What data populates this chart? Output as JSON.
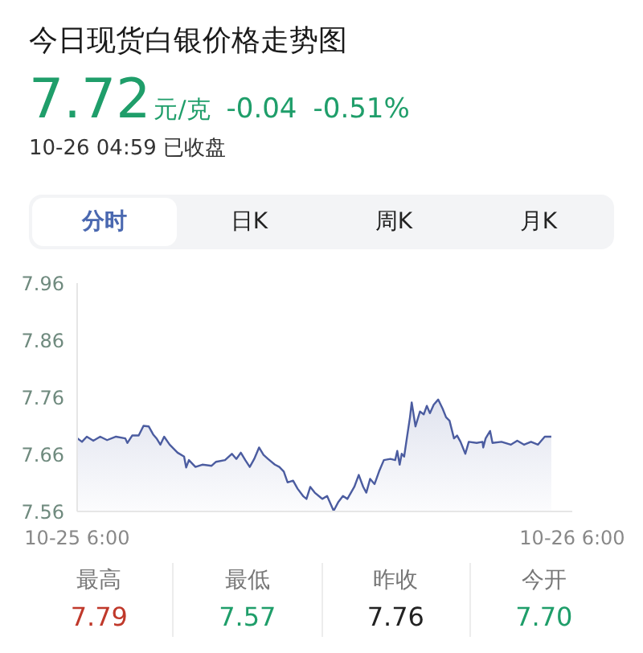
{
  "chart_data": {
    "type": "area",
    "title": "今日现货白银价格走势图",
    "annotations": [
      "7.72",
      "元/克",
      "-0.04",
      "-0.51%",
      "10-26 04:59 已收盘",
      "分时",
      "日K",
      "周K",
      "月K",
      "最高",
      "7.79",
      "最低",
      "7.57",
      "昨收",
      "7.76",
      "今开",
      "7.70"
    ],
    "color": "#4b5ca0",
    "x": [
      "--10-25T06:01",
      "--10-25T06:14",
      "--10-25T06:28",
      "--10-25T06:47",
      "--10-25T07:07",
      "--10-25T07:27",
      "--10-25T07:53",
      "--10-25T08:20",
      "--10-25T08:26",
      "--10-25T08:40",
      "--10-25T08:59",
      "--10-25T09:13",
      "--10-25T09:28",
      "--10-25T09:41",
      "--10-25T09:52",
      "--10-25T10:02",
      "--10-25T10:13",
      "--10-25T10:29",
      "--10-25T10:52",
      "--10-25T11:11",
      "--10-25T11:17",
      "--10-25T11:25",
      "--10-25T11:44",
      "--10-25T12:04",
      "--10-25T12:31",
      "--10-25T12:44",
      "--10-25T13:10",
      "--10-25T13:30",
      "--10-25T13:43",
      "--10-25T13:56",
      "--10-25T14:09",
      "--10-25T14:22",
      "--10-25T14:35",
      "--10-25T14:49",
      "--10-25T15:02",
      "--10-25T15:15",
      "--10-25T15:35",
      "--10-25T15:48",
      "--10-25T16:01",
      "--10-25T16:12",
      "--10-25T16:28",
      "--10-25T16:41",
      "--10-25T16:57",
      "--10-25T17:07",
      "--10-25T17:18",
      "--10-25T17:31",
      "--10-25T17:47",
      "--10-25T17:53",
      "--10-25T18:07",
      "--10-25T18:26",
      "--10-25T18:40",
      "--10-25T18:53",
      "--10-25T19:06",
      "--10-25T19:26",
      "--10-25T19:39",
      "--10-25T19:52",
      "--10-25T20:01",
      "--10-25T20:12",
      "--10-25T20:25",
      "--10-25T20:38",
      "--10-25T20:52",
      "--10-25T21:11",
      "--10-25T21:25",
      "--10-25T21:31",
      "--10-25T21:38",
      "--10-25T21:44",
      "--10-25T21:51",
      "--10-25T22:00",
      "--10-25T22:08",
      "--10-25T22:13",
      "--10-25T22:24",
      "--10-25T22:37",
      "--10-25T22:48",
      "--10-25T22:57",
      "--10-25T23:06",
      "--10-25T23:17",
      "--10-25T23:30",
      "--10-25T23:43",
      "--10-25T23:53",
      "--10-26T00:03",
      "--10-26T00:16",
      "--10-26T00:25",
      "--10-26T00:35",
      "--10-26T00:49",
      "--10-26T00:59",
      "--10-26T01:22",
      "--10-26T01:39",
      "--10-26T01:41",
      "--10-26T01:48",
      "--10-26T02:01",
      "--10-26T02:08",
      "--10-26T02:34",
      "--10-26T03:01",
      "--10-26T03:20",
      "--10-26T03:40",
      "--10-26T04:00",
      "--10-26T04:20",
      "--10-26T04:40",
      "--10-26T04:59"
    ],
    "values": [
      7.688,
      7.682,
      7.691,
      7.684,
      7.691,
      7.685,
      7.691,
      7.688,
      7.68,
      7.693,
      7.693,
      7.71,
      7.709,
      7.695,
      7.687,
      7.677,
      7.691,
      7.677,
      7.663,
      7.656,
      7.637,
      7.65,
      7.638,
      7.642,
      7.64,
      7.647,
      7.65,
      7.661,
      7.652,
      7.663,
      7.65,
      7.638,
      7.652,
      7.672,
      7.659,
      7.652,
      7.642,
      7.638,
      7.63,
      7.611,
      7.614,
      7.6,
      7.587,
      7.582,
      7.603,
      7.593,
      7.585,
      7.582,
      7.587,
      7.561,
      7.577,
      7.587,
      7.582,
      7.603,
      7.624,
      7.603,
      7.593,
      7.617,
      7.608,
      7.63,
      7.65,
      7.652,
      7.65,
      7.666,
      7.642,
      7.661,
      7.656,
      7.693,
      7.725,
      7.751,
      7.709,
      7.735,
      7.73,
      7.745,
      7.732,
      7.747,
      7.756,
      7.74,
      7.725,
      7.719,
      7.688,
      7.693,
      7.682,
      7.661,
      7.682,
      7.68,
      7.682,
      7.672,
      7.688,
      7.701,
      7.68,
      7.682,
      7.677,
      7.684,
      7.677,
      7.682,
      7.677,
      7.691,
      7.691
    ],
    "xlim": [
      "--10-25T06:00",
      "--10-26T06:00"
    ],
    "xticks": [
      {
        "value": "--10-25T06:00",
        "label": "10-25 6:00"
      },
      {
        "value": "--10-26T06:00",
        "label": "10-26 6:00"
      }
    ],
    "ylim": [
      7.56,
      7.96
    ],
    "yticks": [
      7.56,
      7.66,
      7.76,
      7.86,
      7.96
    ]
  }
}
